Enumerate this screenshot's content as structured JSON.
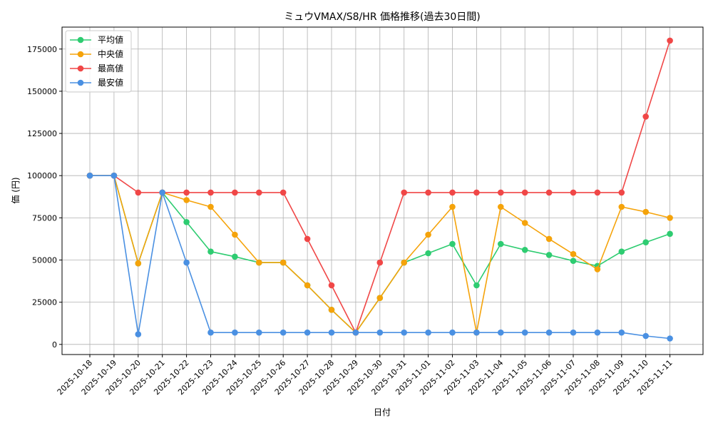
{
  "chart_data": {
    "type": "line",
    "title": "ミュウVMAX/S8/HR 価格推移(過去30日間)",
    "xlabel": "日付",
    "ylabel": "価 (円)",
    "ylim": [
      -6000,
      188000
    ],
    "yticks": [
      0,
      25000,
      50000,
      75000,
      100000,
      125000,
      150000,
      175000
    ],
    "grid": true,
    "legend_position": "top-left",
    "x": [
      "2025-10-18",
      "2025-10-19",
      "2025-10-20",
      "2025-10-21",
      "2025-10-22",
      "2025-10-23",
      "2025-10-24",
      "2025-10-25",
      "2025-10-26",
      "2025-10-27",
      "2025-10-28",
      "2025-10-29",
      "2025-10-30",
      "2025-10-31",
      "2025-11-01",
      "2025-11-02",
      "2025-11-03",
      "2025-11-04",
      "2025-11-05",
      "2025-11-06",
      "2025-11-07",
      "2025-11-08",
      "2025-11-09",
      "2025-11-10",
      "2025-11-11"
    ],
    "series": [
      {
        "name": "平均値",
        "color": "#2ecc71",
        "values": [
          100000,
          100000,
          48000,
          90000,
          72500,
          55000,
          52000,
          48500,
          48500,
          35000,
          20500,
          7000,
          27500,
          48500,
          54000,
          59500,
          35000,
          59500,
          56000,
          53000,
          49500,
          46500,
          55000,
          60500,
          65500
        ]
      },
      {
        "name": "中央値",
        "color": "#f5a30a",
        "values": [
          100000,
          100000,
          48000,
          90000,
          85500,
          81500,
          65000,
          48500,
          48500,
          35000,
          20500,
          7000,
          27500,
          48500,
          65000,
          81500,
          7000,
          81500,
          72000,
          62500,
          53500,
          44500,
          81500,
          78500,
          75000
        ]
      },
      {
        "name": "最高値",
        "color": "#f04747",
        "values": [
          100000,
          100000,
          90000,
          90000,
          90000,
          90000,
          90000,
          90000,
          90000,
          62500,
          35000,
          7000,
          48500,
          90000,
          90000,
          90000,
          90000,
          90000,
          90000,
          90000,
          90000,
          90000,
          90000,
          135000,
          180000
        ]
      },
      {
        "name": "最安値",
        "color": "#4a90e2",
        "values": [
          100000,
          100000,
          6000,
          90000,
          48500,
          7000,
          7000,
          7000,
          7000,
          7000,
          7000,
          7000,
          7000,
          7000,
          7000,
          7000,
          7000,
          7000,
          7000,
          7000,
          7000,
          7000,
          7000,
          5000,
          3500
        ]
      }
    ]
  }
}
